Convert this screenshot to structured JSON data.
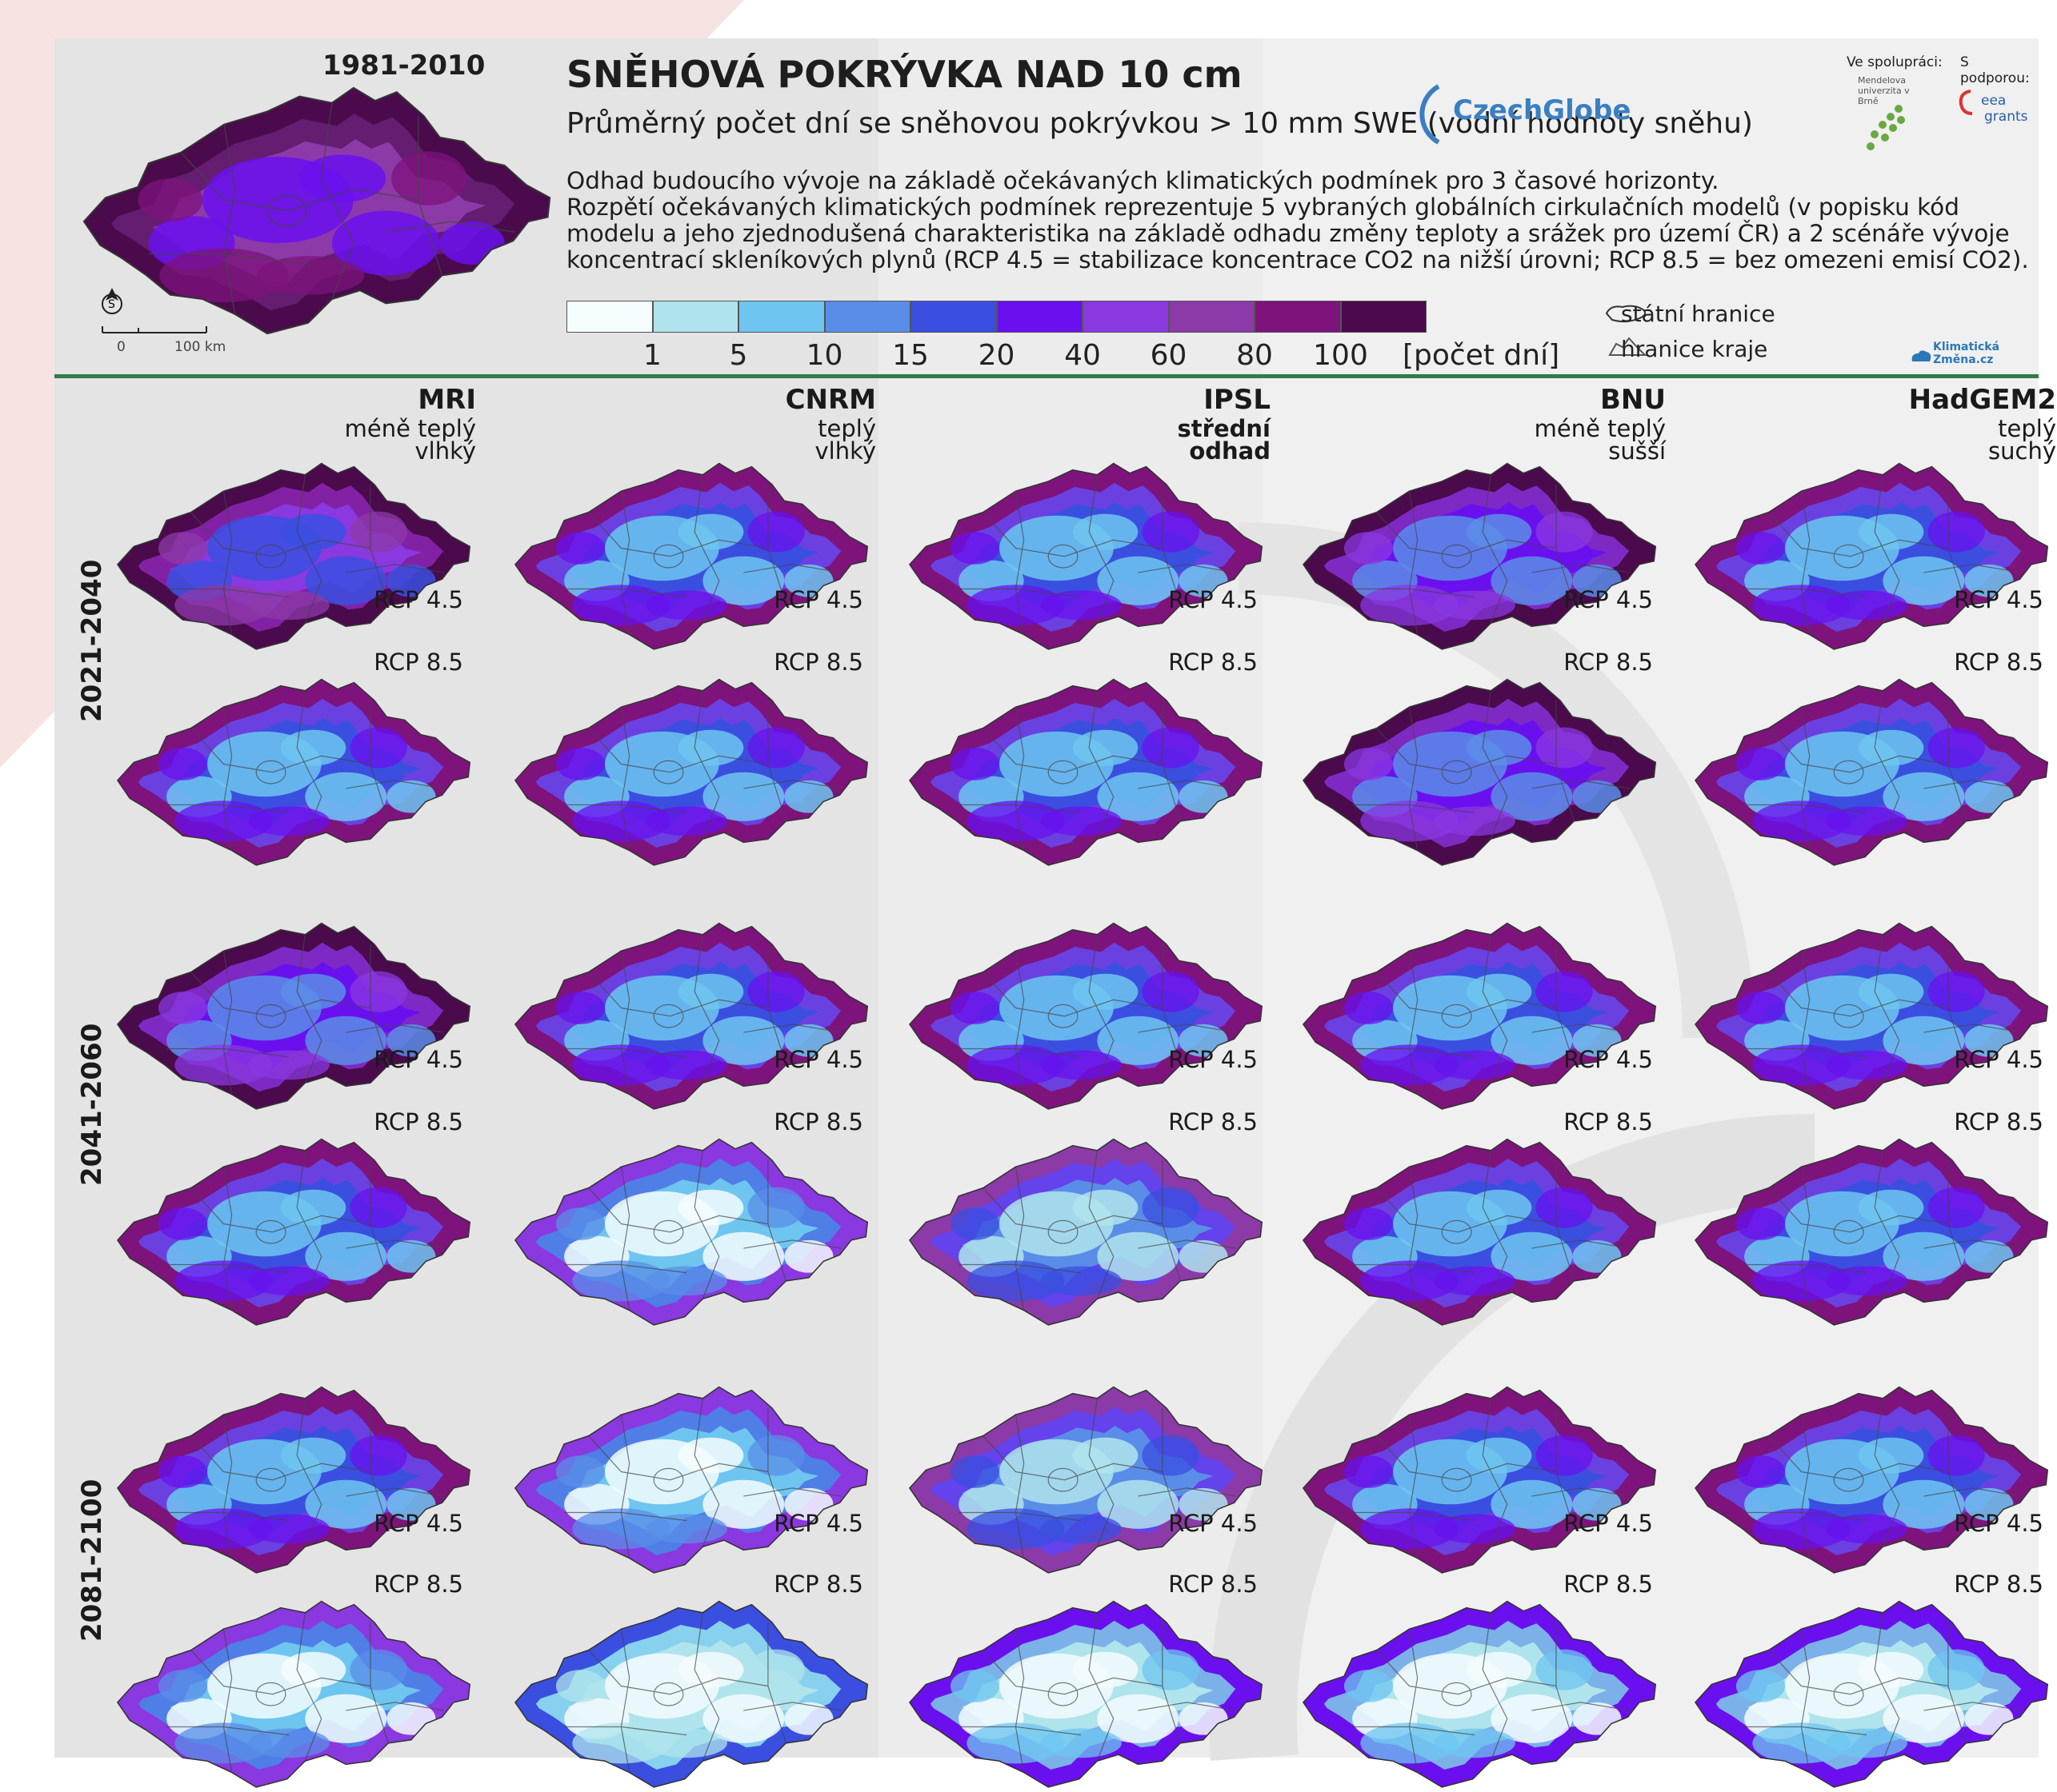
{
  "baseline": {
    "period": "1981-2010",
    "scale_text": "100 km",
    "scale_zero": "0"
  },
  "title": "SNĚHOVÁ POKRÝVKA NAD 10 cm",
  "subtitle": "Průměrný počet dní se sněhovou pokrývkou > 10 mm SWE (vodní hodnoty sněhu)",
  "description": [
    "Odhad budoucího vývoje na základě očekávaných klimatických podmínek pro 3 časové horizonty.",
    "Rozpětí očekávaných klimatických podmínek reprezentuje 5 vybraných globálních cirkulačních modelů (v popisku kód",
    "modelu a jeho zjednodušená charakteristika na základě odhadu změny teploty a srážek pro území ČR) a 2 scénáře vývoje",
    "koncentrací skleníkových plynů (RCP 4.5 = stabilizace koncentrace CO2 na nižší úrovni; RCP 8.5 = bez omezeni emisí CO2)."
  ],
  "legend": {
    "colors": [
      "#f4fcfe",
      "#b0e4ec",
      "#6ec5f0",
      "#5a8de8",
      "#3a4fe0",
      "#6a10ee",
      "#8a38e0",
      "#8c3aa8",
      "#7e137c",
      "#4a0a4c"
    ],
    "ticks": [
      "1",
      "5",
      "10",
      "15",
      "20",
      "40",
      "60",
      "80",
      "100"
    ],
    "unit": "[počet dní]",
    "boundaries": [
      {
        "label": "státní hranice",
        "icon": "country-outline-icon"
      },
      {
        "label": "hranice kraje",
        "icon": "region-outline-icon"
      }
    ]
  },
  "logos": {
    "partner_label": "Ve spolupráci:",
    "support_label": "S podporou:",
    "czechglobe": "CzechGlobe",
    "mendel": "Mendelova univerzita v Brně",
    "eea_line1": "eea",
    "eea_line2": "grants",
    "klima_line1": "Klimatická",
    "klima_line2": "Změna.cz"
  },
  "models": [
    {
      "code": "MRI",
      "char1": "méně teplý",
      "char2": "vlhký"
    },
    {
      "code": "CNRM",
      "char1": "teplý",
      "char2": "vlhký"
    },
    {
      "code": "IPSL",
      "char1": "střední",
      "char2": "odhad"
    },
    {
      "code": "BNU",
      "char1": "méně teplý",
      "char2": "sušší"
    },
    {
      "code": "HadGEM2",
      "char1": "teplý",
      "char2": "suchý"
    }
  ],
  "periods": [
    "2021-2040",
    "2041-2060",
    "2081-2100"
  ],
  "scenarios": [
    "RCP 4.5",
    "RCP 8.5"
  ],
  "map_intensity": [
    [
      [
        0.8,
        0.55,
        0.6,
        0.7,
        0.6
      ],
      [
        0.6,
        0.55,
        0.58,
        0.65,
        0.6
      ]
    ],
    [
      [
        0.62,
        0.5,
        0.55,
        0.6,
        0.58
      ],
      [
        0.55,
        0.35,
        0.48,
        0.5,
        0.5
      ]
    ],
    [
      [
        0.55,
        0.35,
        0.48,
        0.5,
        0.55
      ],
      [
        0.28,
        0.1,
        0.22,
        0.18,
        0.25
      ]
    ]
  ]
}
